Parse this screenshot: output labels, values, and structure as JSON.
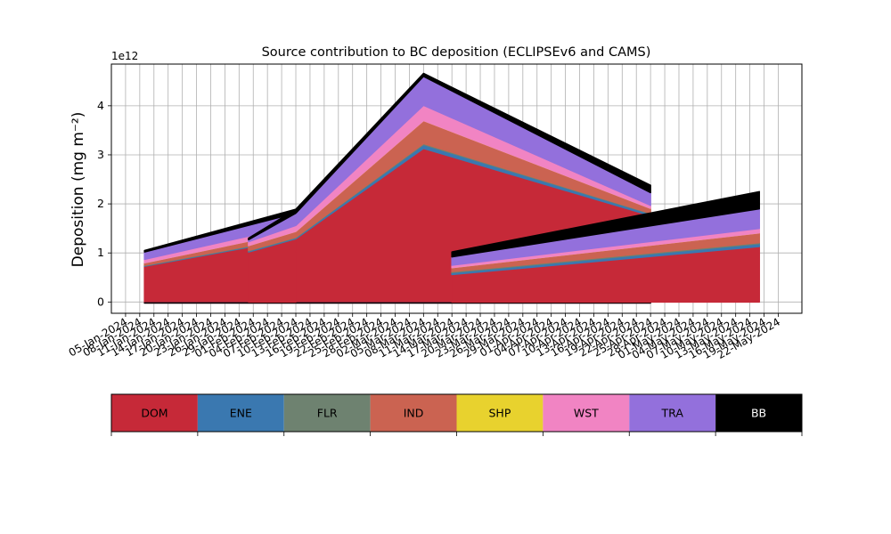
{
  "chart_data": {
    "type": "area",
    "title": "Source contribution to BC deposition (ECLIPSEv6 and CAMS)",
    "ylabel": "Deposition (mg m⁻²)",
    "xlabel": "",
    "y_multiplier_label": "1e12",
    "y_multiplier": 1000000000000.0,
    "ylim": [
      -0.23,
      4.85
    ],
    "yticks": [
      0,
      1,
      2,
      3,
      4
    ],
    "xlim": [
      "2024-01-02",
      "2024-05-27"
    ],
    "xtick_labels": [
      "05-Jan-2024",
      "08-Jan-2024",
      "11-Jan-2024",
      "14-Jan-2024",
      "17-Jan-2024",
      "20-Jan-2024",
      "23-Jan-2024",
      "26-Jan-2024",
      "29-Jan-2024",
      "01-Feb-2024",
      "04-Feb-2024",
      "07-Feb-2024",
      "10-Feb-2024",
      "13-Feb-2024",
      "16-Feb-2024",
      "19-Feb-2024",
      "22-Feb-2024",
      "25-Feb-2024",
      "28-Feb-2024",
      "02-Mar-2024",
      "05-Mar-2024",
      "08-Mar-2024",
      "11-Mar-2024",
      "14-Mar-2024",
      "17-Mar-2024",
      "20-Mar-2024",
      "23-Mar-2024",
      "26-Mar-2024",
      "29-Mar-2024",
      "01-Apr-2024",
      "04-Apr-2024",
      "07-Apr-2024",
      "10-Apr-2024",
      "13-Apr-2024",
      "16-Apr-2024",
      "19-Apr-2024",
      "22-Apr-2024",
      "25-Apr-2024",
      "28-Apr-2024",
      "01-May-2024",
      "04-May-2024",
      "07-May-2024",
      "10-May-2024",
      "13-May-2024",
      "16-May-2024",
      "19-May-2024",
      "22-May-2024"
    ],
    "grid": true,
    "legend_position": "bottom",
    "source_order": [
      "DOM",
      "ENE",
      "FLR",
      "IND",
      "SHP",
      "WST",
      "TRA",
      "BB"
    ],
    "legend": [
      {
        "label": "DOM",
        "color": "#c62938",
        "text_color": "#000000"
      },
      {
        "label": "ENE",
        "color": "#3a78b0",
        "text_color": "#000000"
      },
      {
        "label": "FLR",
        "color": "#6e8270",
        "text_color": "#000000"
      },
      {
        "label": "IND",
        "color": "#cb6351",
        "text_color": "#000000"
      },
      {
        "label": "SHP",
        "color": "#e8d22e",
        "text_color": "#000000"
      },
      {
        "label": "WST",
        "color": "#f184c3",
        "text_color": "#000000"
      },
      {
        "label": "TRA",
        "color": "#9370dc",
        "text_color": "#000000"
      },
      {
        "label": "BB",
        "color": "#000000",
        "text_color": "#ffffff"
      }
    ],
    "series_groups": [
      {
        "x": [
          "2024-01-09",
          "2024-02-10",
          "2024-03-08",
          "2024-04-25"
        ],
        "values": {
          "DOM": [
            0.73,
            1.29,
            3.13,
            1.76
          ],
          "ENE": [
            0.01,
            0.02,
            0.08,
            0.04
          ],
          "FLR": [
            0.01,
            0.01,
            0.02,
            0.01
          ],
          "IND": [
            0.05,
            0.12,
            0.47,
            0.1
          ],
          "SHP": [
            0.0,
            0.0,
            0.0,
            0.0
          ],
          "WST": [
            0.07,
            0.12,
            0.31,
            0.06
          ],
          "TRA": [
            0.15,
            0.25,
            0.59,
            0.26
          ],
          "BB": [
            0.03,
            0.08,
            0.06,
            0.15
          ]
        }
      },
      {
        "x": [
          "2024-01-09",
          "2024-01-31",
          "2024-04-25"
        ],
        "values": {
          "DOM": [
            -0.02,
            -0.02,
            -0.02
          ],
          "ENE": [
            0.0,
            0.0,
            0.0
          ],
          "FLR": [
            0.0,
            0.0,
            0.0
          ],
          "IND": [
            0.0,
            0.0,
            0.0
          ],
          "SHP": [
            0.0,
            0.0,
            0.0
          ],
          "WST": [
            0.0,
            0.0,
            0.0
          ],
          "TRA": [
            0.0,
            0.0,
            0.0
          ],
          "BB": [
            0.0,
            0.0,
            0.0
          ]
        }
      },
      {
        "x": [
          "2024-01-31",
          "2024-02-10"
        ],
        "values": {
          "DOM": [
            1.02,
            1.29
          ],
          "ENE": [
            0.02,
            0.02
          ],
          "FLR": [
            0.01,
            0.01
          ],
          "IND": [
            0.1,
            0.12
          ],
          "SHP": [
            0.0,
            0.0
          ],
          "WST": [
            0.08,
            0.12
          ],
          "TRA": [
            0.04,
            0.25
          ],
          "BB": [
            0.03,
            0.08
          ]
        }
      },
      {
        "x": [
          "2024-03-14",
          "2024-05-18"
        ],
        "values": {
          "DOM": [
            0.56,
            1.13
          ],
          "ENE": [
            0.04,
            0.06
          ],
          "FLR": [
            0.02,
            0.02
          ],
          "IND": [
            0.08,
            0.2
          ],
          "SHP": [
            0.0,
            0.0
          ],
          "WST": [
            0.05,
            0.09
          ],
          "TRA": [
            0.17,
            0.4
          ],
          "BB": [
            0.1,
            0.35
          ]
        }
      }
    ]
  }
}
